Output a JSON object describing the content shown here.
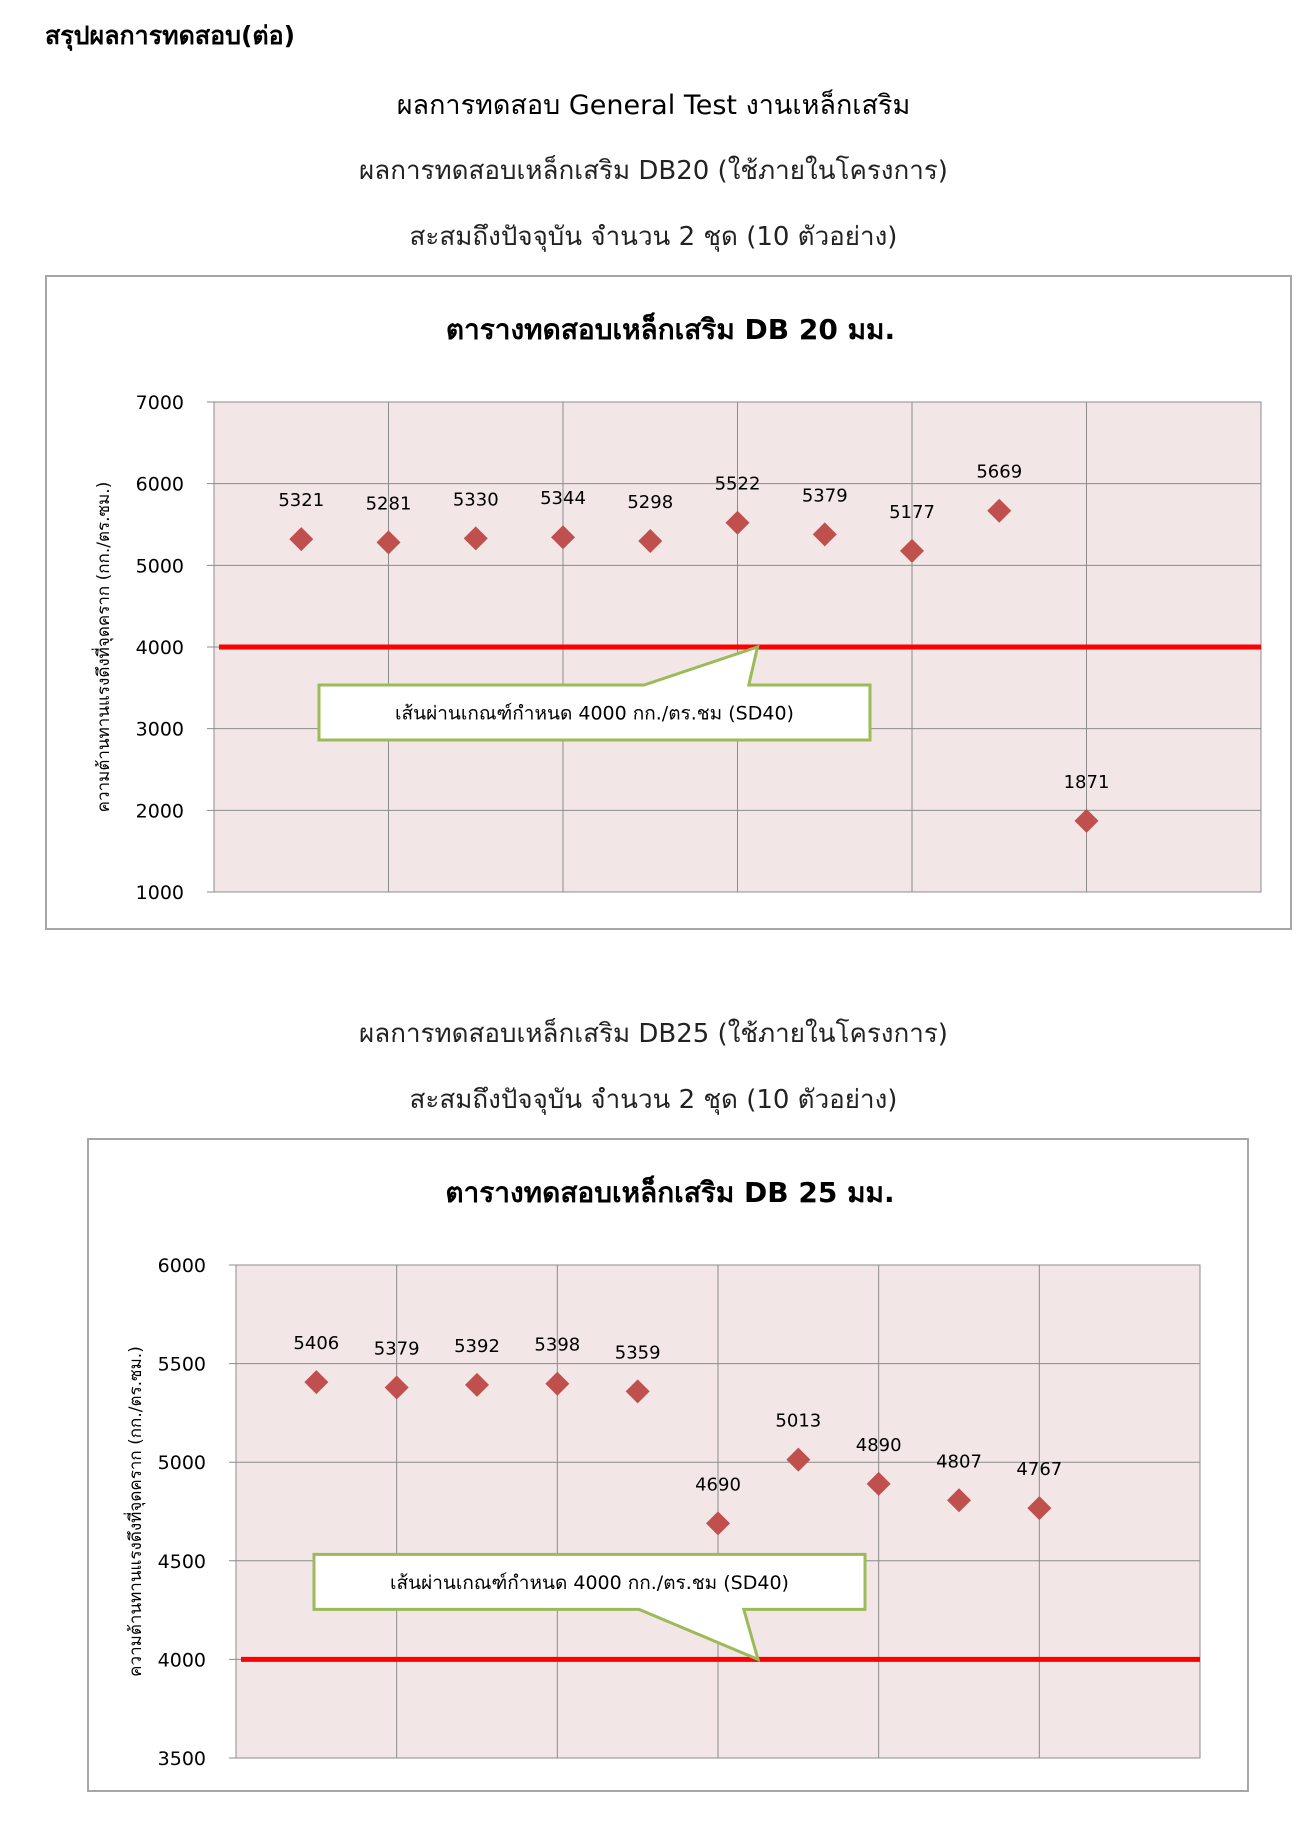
{
  "page": {
    "header": "สรุปผลการทดสอบ(ต่อ)",
    "main_title": "ผลการทดสอบ General Test งานเหล็กเสริม",
    "section1": {
      "line1": "ผลการทดสอบเหล็กเสริม DB20 (ใช้ภายในโครงการ)",
      "line2": "สะสมถึงปัจจุบัน จำนวน 2 ชุด (10 ตัวอย่าง)"
    },
    "section2": {
      "line1": "ผลการทดสอบเหล็กเสริม DB25 (ใช้ภายในโครงการ)",
      "line2": "สะสมถึงปัจจุบัน จำนวน 2 ชุด (10 ตัวอย่าง)"
    }
  },
  "colors": {
    "plot_bg": "#f2e6e6",
    "grid": "#8c8c8c",
    "marker": "#c0504d",
    "threshold": "#ff0000",
    "callout_border": "#9bbb59"
  },
  "chart_data": [
    {
      "type": "scatter",
      "title": "ตารางทดสอบเหล็กเสริม DB 20 มม.",
      "ylabel": "ความต้านทานแรงดึงที่จุดคราก (กก./ตร.ซม.)",
      "xlabel": "",
      "ylim": [
        1000,
        7000
      ],
      "yticks": [
        1000,
        2000,
        3000,
        4000,
        5000,
        6000,
        7000
      ],
      "grid": true,
      "marker": "diamond",
      "values": [
        5321,
        5281,
        5330,
        5344,
        5298,
        5522,
        5379,
        5177,
        5669,
        1871
      ],
      "data_labels": [
        "5321",
        "5281",
        "5330",
        "5344",
        "5298",
        "5522",
        "5379",
        "5177",
        "5669",
        "1871"
      ],
      "threshold": {
        "value": 4000,
        "label": "เส้นผ่านเกณฑ์กำหนด 4000 กก./ตร.ชม (SD40)"
      }
    },
    {
      "type": "scatter",
      "title": "ตารางทดสอบเหล็กเสริม DB 25 มม.",
      "ylabel": "ความต้านทานแรงดึงที่จุดคราก (กก./ตร.ซม.)",
      "xlabel": "",
      "ylim": [
        3500,
        6000
      ],
      "yticks": [
        3500,
        4000,
        4500,
        5000,
        5500,
        6000
      ],
      "grid": true,
      "marker": "diamond",
      "values": [
        5406,
        5379,
        5392,
        5398,
        5359,
        4690,
        5013,
        4890,
        4807,
        4767
      ],
      "data_labels": [
        "5406",
        "5379",
        "5392",
        "5398",
        "5359",
        "4690",
        "5013",
        "4890",
        "4807",
        "4767"
      ],
      "threshold": {
        "value": 4000,
        "label": "เส้นผ่านเกณฑ์กำหนด 4000 กก./ตร.ชม (SD40)"
      }
    }
  ]
}
